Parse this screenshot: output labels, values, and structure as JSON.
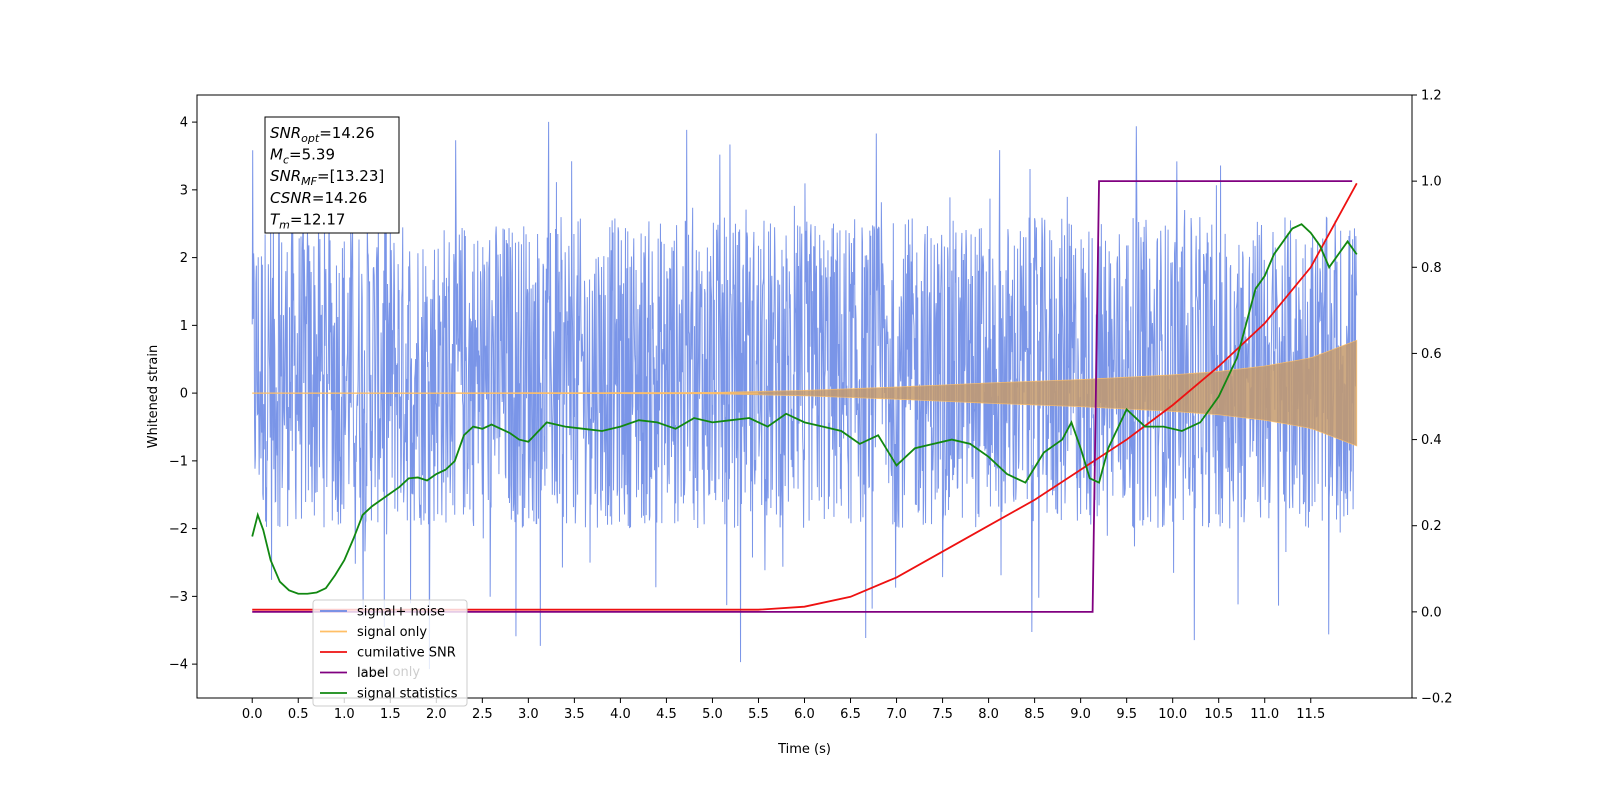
{
  "chart_data": {
    "type": "line",
    "xlabel": "Time (s)",
    "ylabel": "Whitened strain",
    "xlim": [
      -0.6,
      12.6
    ],
    "ylim": [
      -4.5,
      4.4
    ],
    "y2lim": [
      -0.2,
      1.2
    ],
    "x_ticks": [
      "0.0",
      "0.5",
      "1.0",
      "1.5",
      "2.0",
      "2.5",
      "3.0",
      "3.5",
      "4.0",
      "4.5",
      "5.0",
      "5.5",
      "6.0",
      "6.5",
      "7.0",
      "7.5",
      "8.0",
      "8.5",
      "9.0",
      "9.5",
      "10.0",
      "10.5",
      "11.0",
      "11.5"
    ],
    "y_ticks": [
      "4",
      "3",
      "2",
      "1",
      "0",
      "−1",
      "−2",
      "−3",
      "−4"
    ],
    "y2_ticks": [
      "1.2",
      "1.0",
      "0.8",
      "0.6",
      "0.4",
      "0.2",
      "0.0",
      "−0.2"
    ],
    "legend_position": "lower-left",
    "legend": [
      {
        "label": "signal+ noise",
        "color": "#6b8ae6"
      },
      {
        "label": "signal only",
        "color": "#ffbf66"
      },
      {
        "label": "cumilative SNR",
        "color": "#ee1111"
      },
      {
        "label": "label",
        "color": "#800080"
      },
      {
        "label": "signal statistics",
        "color": "#118811"
      }
    ],
    "legend_hidden_text": "label only",
    "annotation": {
      "lines": [
        {
          "name": "SNR",
          "sub": "opt",
          "value": "=14.26"
        },
        {
          "name": "M",
          "sub": "c",
          "value": "=5.39"
        },
        {
          "name": "SNR",
          "sub": "MF",
          "value": "=[13.23]"
        },
        {
          "name": "CSNR",
          "sub": "",
          "value": "=14.26"
        },
        {
          "name": "T",
          "sub": "m",
          "value": "=12.17"
        }
      ]
    },
    "series": [
      {
        "name": "signal+ noise",
        "axis": "left",
        "color": "#6b8ae6",
        "x_range": [
          0.0,
          12.0
        ],
        "noise_band": {
          "typical_min": -2.0,
          "typical_max": 2.6,
          "peak_max": 4.05,
          "peak_min": -4.1
        }
      },
      {
        "name": "signal only",
        "axis": "left",
        "color": "#ffbf66",
        "envelope_x": [
          0.0,
          5.0,
          6.0,
          7.0,
          8.0,
          9.0,
          10.0,
          10.5,
          11.0,
          11.5,
          12.0
        ],
        "envelope_amp": [
          0.0,
          0.01,
          0.04,
          0.09,
          0.15,
          0.2,
          0.27,
          0.32,
          0.4,
          0.52,
          0.78
        ]
      },
      {
        "name": "cumilative SNR",
        "axis": "right",
        "color": "#ee1111",
        "x": [
          0.0,
          5.5,
          6.0,
          6.5,
          7.0,
          7.5,
          8.0,
          8.5,
          9.0,
          9.5,
          10.0,
          10.5,
          11.0,
          11.5,
          12.0
        ],
        "y": [
          0.005,
          0.005,
          0.012,
          0.035,
          0.08,
          0.14,
          0.2,
          0.26,
          0.33,
          0.4,
          0.48,
          0.57,
          0.67,
          0.8,
          0.995
        ]
      },
      {
        "name": "label",
        "axis": "right",
        "color": "#800080",
        "x": [
          0.0,
          9.13,
          9.2,
          11.95
        ],
        "y": [
          0.0,
          0.0,
          1.0,
          1.0
        ]
      },
      {
        "name": "signal statistics",
        "axis": "right",
        "color": "#118811",
        "x": [
          0.0,
          0.06,
          0.12,
          0.2,
          0.3,
          0.4,
          0.5,
          0.6,
          0.7,
          0.8,
          0.9,
          1.0,
          1.1,
          1.2,
          1.3,
          1.4,
          1.5,
          1.6,
          1.7,
          1.8,
          1.9,
          2.0,
          2.1,
          2.2,
          2.3,
          2.4,
          2.5,
          2.6,
          2.7,
          2.8,
          2.9,
          3.0,
          3.2,
          3.4,
          3.6,
          3.8,
          4.0,
          4.2,
          4.4,
          4.6,
          4.8,
          5.0,
          5.2,
          5.4,
          5.6,
          5.8,
          6.0,
          6.2,
          6.4,
          6.6,
          6.8,
          7.0,
          7.2,
          7.4,
          7.6,
          7.8,
          8.0,
          8.2,
          8.4,
          8.6,
          8.8,
          8.9,
          9.0,
          9.1,
          9.2,
          9.3,
          9.5,
          9.7,
          9.9,
          10.1,
          10.3,
          10.5,
          10.7,
          10.9,
          11.0,
          11.1,
          11.2,
          11.3,
          11.4,
          11.5,
          11.6,
          11.7,
          11.8,
          11.9,
          12.0
        ],
        "y": [
          0.175,
          0.225,
          0.19,
          0.12,
          0.07,
          0.05,
          0.042,
          0.042,
          0.045,
          0.055,
          0.085,
          0.12,
          0.17,
          0.225,
          0.245,
          0.26,
          0.275,
          0.29,
          0.31,
          0.312,
          0.305,
          0.32,
          0.33,
          0.35,
          0.41,
          0.43,
          0.425,
          0.435,
          0.425,
          0.415,
          0.4,
          0.395,
          0.44,
          0.43,
          0.425,
          0.42,
          0.43,
          0.445,
          0.44,
          0.425,
          0.45,
          0.44,
          0.445,
          0.45,
          0.43,
          0.46,
          0.44,
          0.43,
          0.42,
          0.39,
          0.41,
          0.34,
          0.38,
          0.39,
          0.4,
          0.39,
          0.36,
          0.32,
          0.3,
          0.37,
          0.4,
          0.44,
          0.38,
          0.31,
          0.3,
          0.38,
          0.47,
          0.43,
          0.43,
          0.42,
          0.44,
          0.5,
          0.59,
          0.75,
          0.78,
          0.83,
          0.86,
          0.89,
          0.9,
          0.88,
          0.85,
          0.8,
          0.83,
          0.86,
          0.83
        ]
      }
    ]
  }
}
